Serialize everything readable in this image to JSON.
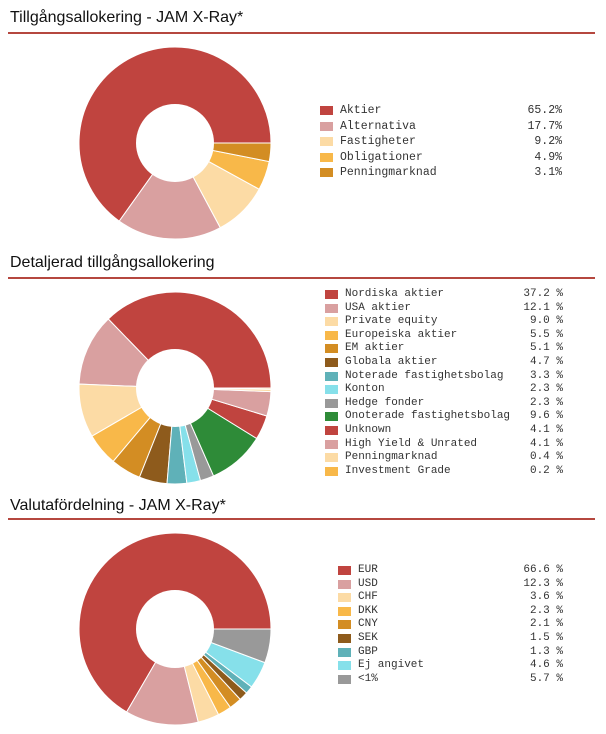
{
  "chart_data": [
    {
      "type": "pie",
      "title": "Tillgångsallokering - JAM X-Ray*",
      "donut": true,
      "legend_position": "right",
      "value_suffix": "%",
      "slices": [
        {
          "label": "Aktier",
          "value": 65.2,
          "value_text": "65.2%",
          "color": "#c0443f"
        },
        {
          "label": "Alternativa",
          "value": 17.7,
          "value_text": "17.7%",
          "color": "#d9a0a0"
        },
        {
          "label": "Fastigheter",
          "value": 9.2,
          "value_text": "9.2%",
          "color": "#fcdba5"
        },
        {
          "label": "Obligationer",
          "value": 4.9,
          "value_text": "4.9%",
          "color": "#f8b849"
        },
        {
          "label": "Penningmarknad",
          "value": 3.1,
          "value_text": "3.1%",
          "color": "#d38d23"
        }
      ]
    },
    {
      "type": "pie",
      "title": "Detaljerad tillgångsallokering",
      "donut": true,
      "legend_position": "right",
      "value_suffix": "%",
      "slices": [
        {
          "label": "Nordiska aktier",
          "value": 37.2,
          "value_text": "37.2 %",
          "color": "#c0443f"
        },
        {
          "label": "USA aktier",
          "value": 12.1,
          "value_text": "12.1 %",
          "color": "#d9a0a0"
        },
        {
          "label": "Private equity",
          "value": 9.0,
          "value_text": "9.0 %",
          "color": "#fcdba5"
        },
        {
          "label": "Europeiska aktier",
          "value": 5.5,
          "value_text": "5.5 %",
          "color": "#f8b849"
        },
        {
          "label": "EM aktier",
          "value": 5.1,
          "value_text": "5.1 %",
          "color": "#d38d23"
        },
        {
          "label": "Globala aktier",
          "value": 4.7,
          "value_text": "4.7 %",
          "color": "#8e5b1c"
        },
        {
          "label": "Noterade fastighetsbolag",
          "value": 3.3,
          "value_text": "3.3 %",
          "color": "#5fb1b8"
        },
        {
          "label": "Konton",
          "value": 2.3,
          "value_text": "2.3 %",
          "color": "#86e0ea"
        },
        {
          "label": "Hedge fonder",
          "value": 2.3,
          "value_text": "2.3 %",
          "color": "#999999"
        },
        {
          "label": "Onoterade fastighetsbolag",
          "value": 9.6,
          "value_text": "9.6 %",
          "color": "#2e8b38"
        },
        {
          "label": "Unknown",
          "value": 4.1,
          "value_text": "4.1 %",
          "color": "#c0443f"
        },
        {
          "label": "High Yield & Unrated",
          "value": 4.1,
          "value_text": "4.1 %",
          "color": "#d9a0a0"
        },
        {
          "label": "Penningmarknad",
          "value": 0.4,
          "value_text": "0.4 %",
          "color": "#fcdba5"
        },
        {
          "label": "Investment Grade",
          "value": 0.2,
          "value_text": "0.2 %",
          "color": "#f8b849"
        }
      ]
    },
    {
      "type": "pie",
      "title": "Valutafördelning - JAM X-Ray*",
      "donut": true,
      "legend_position": "right",
      "value_suffix": "%",
      "slices": [
        {
          "label": "EUR",
          "value": 66.6,
          "value_text": "66.6 %",
          "color": "#c0443f"
        },
        {
          "label": "USD",
          "value": 12.3,
          "value_text": "12.3 %",
          "color": "#d9a0a0"
        },
        {
          "label": "CHF",
          "value": 3.6,
          "value_text": "3.6 %",
          "color": "#fcdba5"
        },
        {
          "label": "DKK",
          "value": 2.3,
          "value_text": "2.3 %",
          "color": "#f8b849"
        },
        {
          "label": "CNY",
          "value": 2.1,
          "value_text": "2.1 %",
          "color": "#d38d23"
        },
        {
          "label": "SEK",
          "value": 1.5,
          "value_text": "1.5 %",
          "color": "#8e5b1c"
        },
        {
          "label": "GBP",
          "value": 1.3,
          "value_text": "1.3 %",
          "color": "#5fb1b8"
        },
        {
          "label": "Ej angivet",
          "value": 4.6,
          "value_text": "4.6 %",
          "color": "#86e0ea"
        },
        {
          "label": "<1%",
          "value": 5.7,
          "value_text": "5.7 %",
          "color": "#999999"
        }
      ]
    }
  ]
}
